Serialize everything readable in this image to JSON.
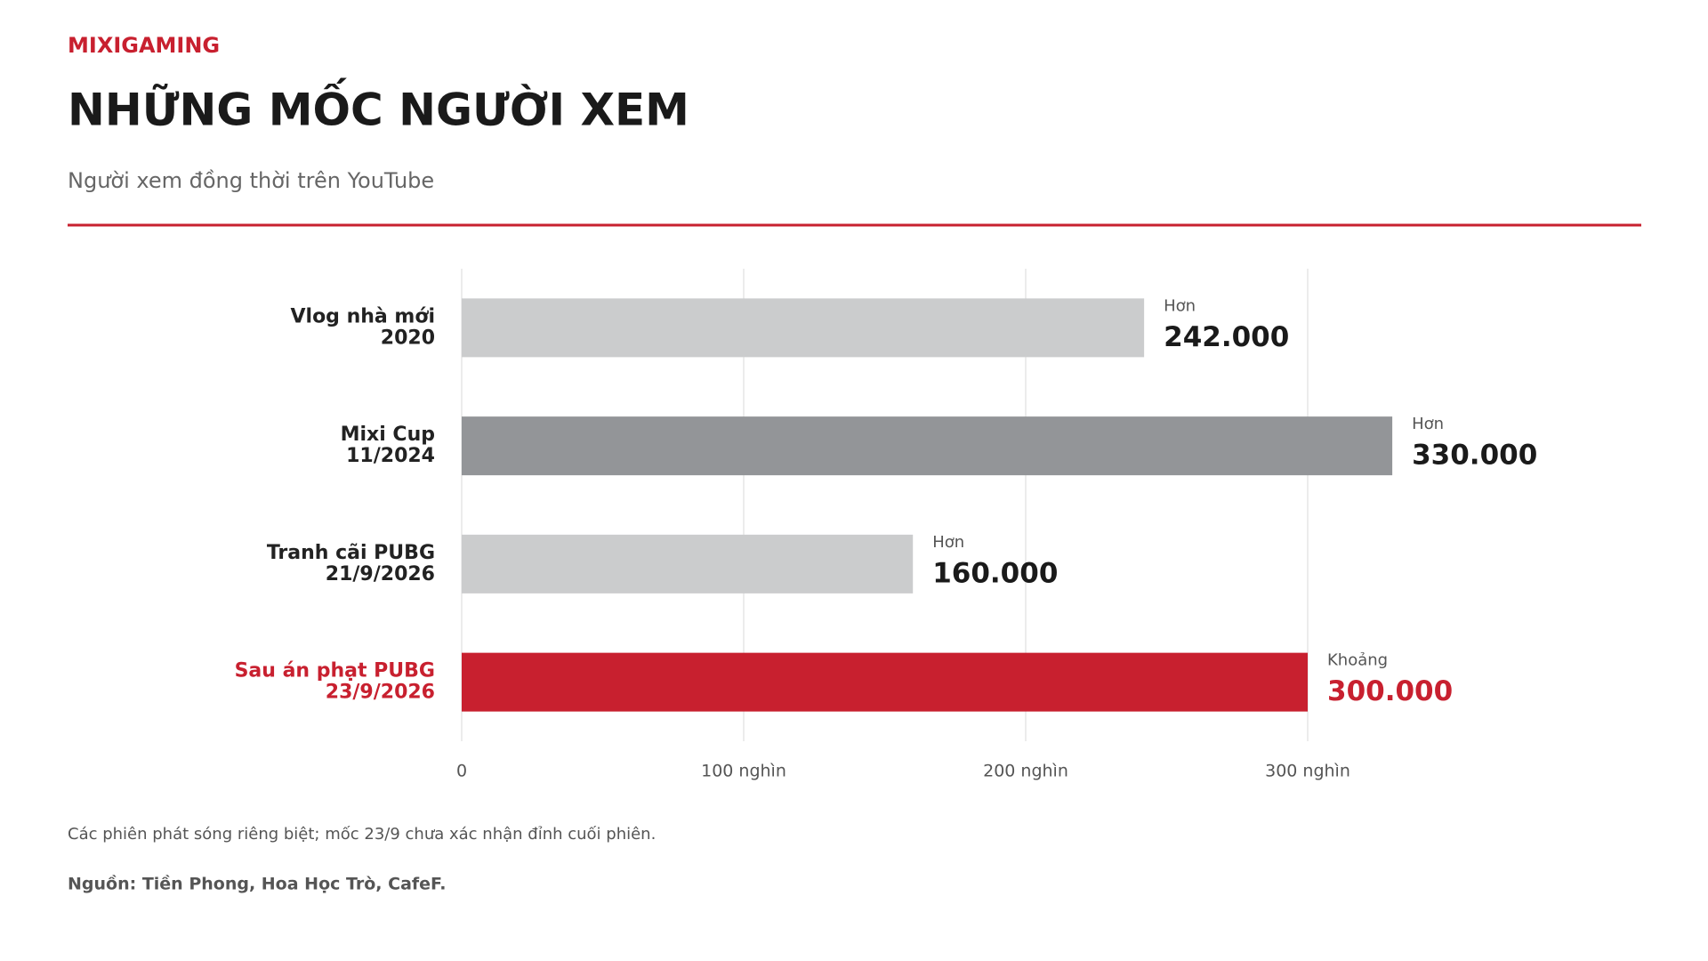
{
  "header": {
    "brand": "MIXIGAMING",
    "title": "NHỮNG MỐC NGƯỜI XEM",
    "subtitle": "Người xem đồng thời trên YouTube"
  },
  "chart_data": {
    "type": "bar",
    "orientation": "horizontal",
    "categories": [
      [
        "Vlog nhà mới",
        "2020"
      ],
      [
        "Mixi Cup",
        "11/2024"
      ],
      [
        "Tranh cãi PUBG",
        "21/9/2026"
      ],
      [
        "Sau án phạt PUBG",
        "23/9/2026"
      ]
    ],
    "category_colors": [
      "#222222",
      "#222222",
      "#222222",
      "#c8202f"
    ],
    "values": [
      242000,
      330000,
      160000,
      300000
    ],
    "value_labels": [
      "242.000",
      "330.000",
      "160.000",
      "300.000"
    ],
    "value_notes": [
      "Hơn",
      "Hơn",
      "Hơn",
      "Khoảng"
    ],
    "colors": [
      "#cbcccd",
      "#939598",
      "#cbcccd",
      "#c8202f"
    ],
    "xlim": [
      0,
      400000
    ],
    "xticks": [
      0,
      {
        "value": 100000,
        "label": "100 nghìn"
      },
      {
        "value": 200000,
        "label": "200 nghìn"
      },
      {
        "value": 300000,
        "label": "300 nghìn"
      }
    ],
    "grid": true
  },
  "footer": {
    "note": "Các phiên phát sóng riêng biệt; mốc 23/9 chưa xác nhận đỉnh cuối phiên.",
    "source": "Nguồn: Tiền Phong, Hoa Học Trò, CafeF."
  }
}
